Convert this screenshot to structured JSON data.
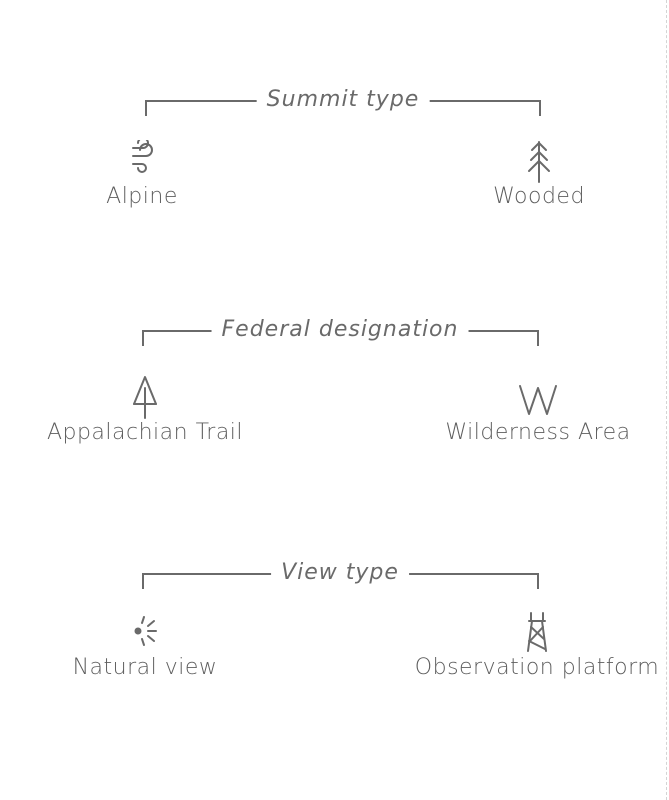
{
  "groups": [
    {
      "heading": "Summit type",
      "items": [
        {
          "label": "Alpine",
          "icon": "wind-icon"
        },
        {
          "label": "Wooded",
          "icon": "tree-icon"
        }
      ]
    },
    {
      "heading": "Federal designation",
      "items": [
        {
          "label": "Appalachian Trail",
          "icon": "appalachian-trail-icon"
        },
        {
          "label": "Wilderness Area",
          "icon": "wilderness-w-icon"
        }
      ]
    },
    {
      "heading": "View type",
      "items": [
        {
          "label": "Natural view",
          "icon": "sunburst-icon"
        },
        {
          "label": "Observation platform",
          "icon": "fire-tower-icon"
        }
      ]
    }
  ],
  "colors": {
    "line": "#6a6a6a",
    "text": "#5e5e5e"
  }
}
